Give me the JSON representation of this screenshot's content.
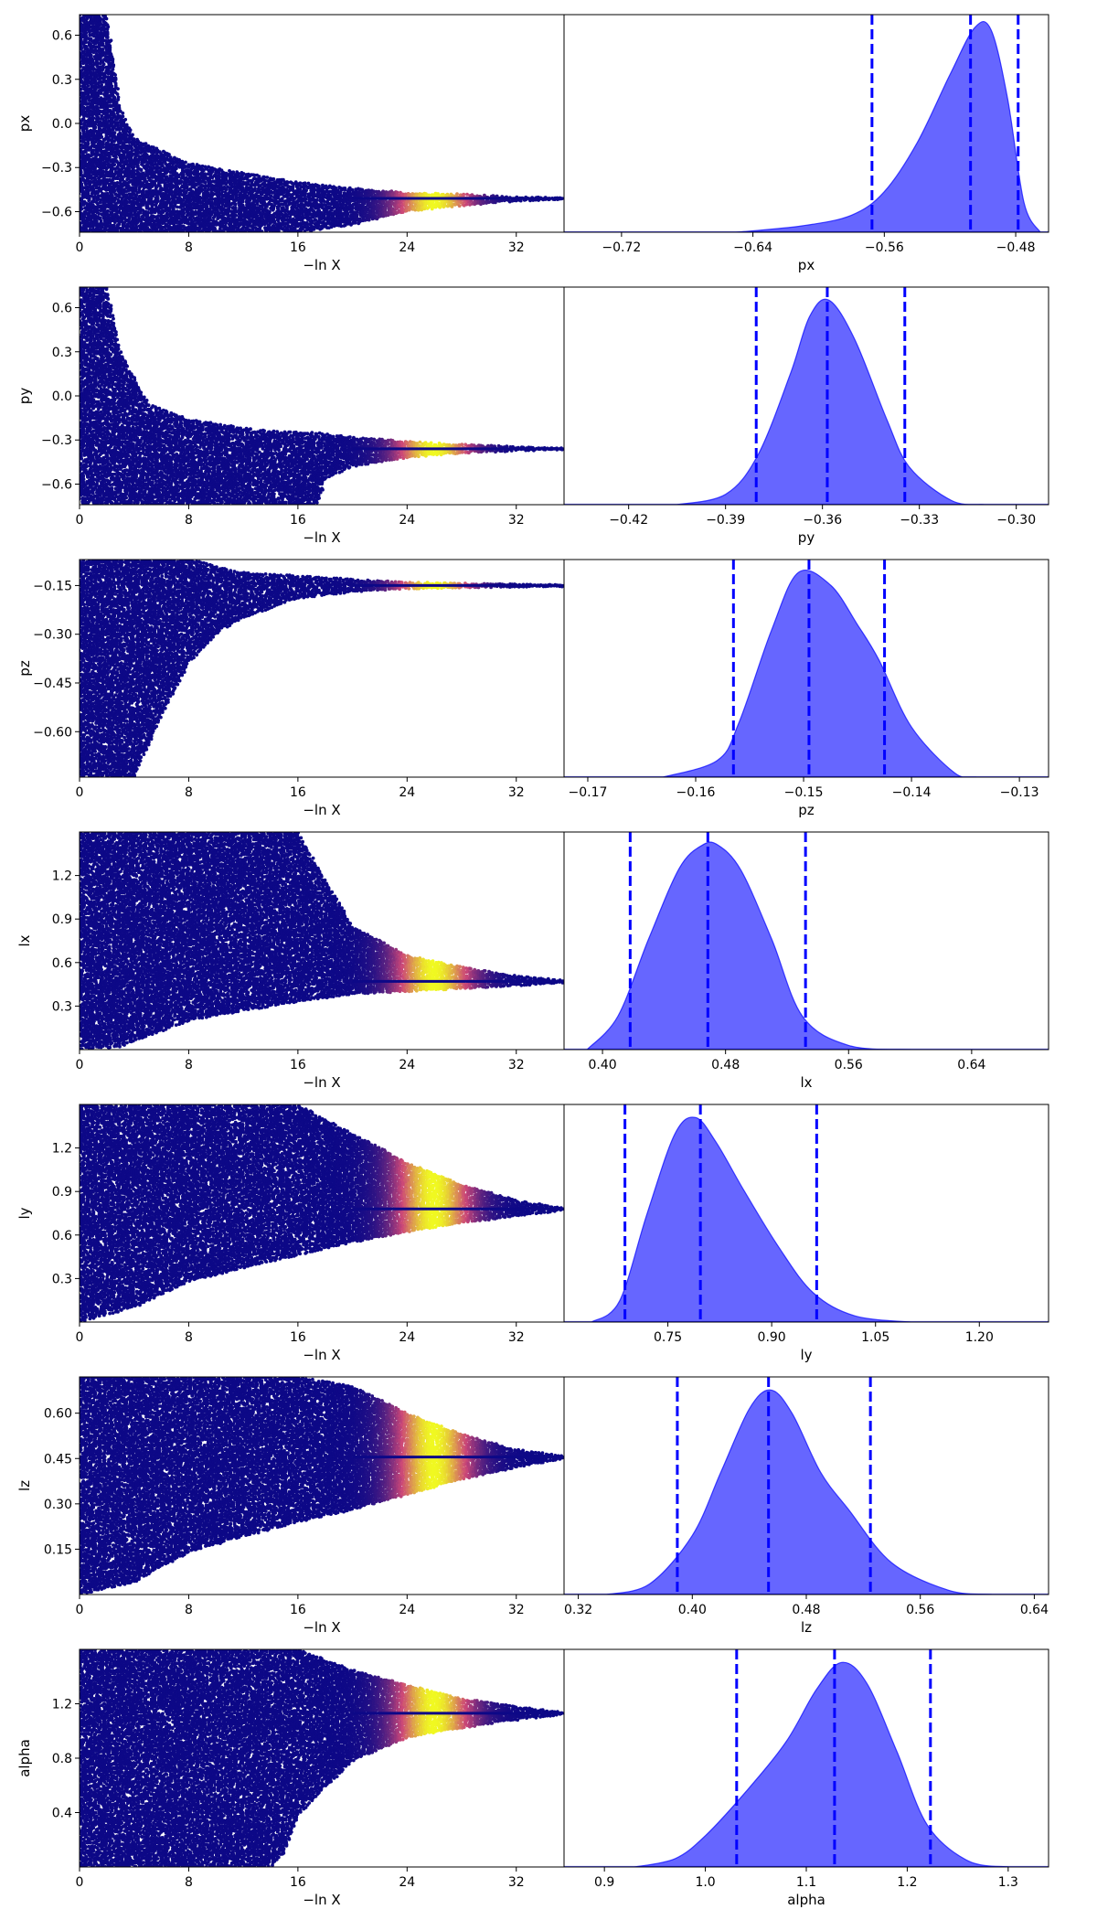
{
  "figure": {
    "colors": {
      "density_fill": "#0000ff",
      "density_fill_opacity": 0.6,
      "quantile_line": "#0000ff",
      "scatter_low": "#0d0887",
      "scatter_mid": "#cc4778",
      "scatter_high": "#f0f921"
    }
  },
  "chart_data": [
    {
      "type": "scatter",
      "param": "px",
      "xlabel": "−ln X",
      "ylabel": "px",
      "xlim": [
        0,
        35.5
      ],
      "ylim": [
        -0.74,
        0.74
      ],
      "x_ticks": [
        0,
        8,
        16,
        24,
        32
      ],
      "y_ticks": [
        -0.6,
        -0.3,
        0.0,
        0.3,
        0.6
      ],
      "y_tick_labels": [
        "−0.6",
        "−0.3",
        "0.0",
        "0.3",
        "0.6"
      ],
      "converged_value": -0.51,
      "envelope": [
        {
          "x": 0,
          "lo": -0.74,
          "hi": 0.74
        },
        {
          "x": 2,
          "lo": -0.74,
          "hi": 0.74
        },
        {
          "x": 3,
          "lo": -0.74,
          "hi": 0.1
        },
        {
          "x": 4,
          "lo": -0.74,
          "hi": -0.1
        },
        {
          "x": 8,
          "lo": -0.74,
          "hi": -0.27
        },
        {
          "x": 16,
          "lo": -0.74,
          "hi": -0.4
        },
        {
          "x": 20,
          "lo": -0.69,
          "hi": -0.44
        },
        {
          "x": 24,
          "lo": -0.6,
          "hi": -0.47
        },
        {
          "x": 28,
          "lo": -0.56,
          "hi": -0.48
        },
        {
          "x": 32,
          "lo": -0.53,
          "hi": -0.5
        },
        {
          "x": 35.5,
          "lo": -0.515,
          "hi": -0.505
        }
      ]
    },
    {
      "type": "area",
      "param": "px",
      "xlabel": "px",
      "xlim": [
        -0.755,
        -0.46
      ],
      "x_ticks": [
        -0.72,
        -0.64,
        -0.56,
        -0.48
      ],
      "x_tick_labels": [
        "−0.72",
        "−0.64",
        "−0.56",
        "−0.48"
      ],
      "density": {
        "x": [
          -0.65,
          -0.61,
          -0.58,
          -0.56,
          -0.54,
          -0.52,
          -0.505,
          -0.495,
          -0.485,
          -0.475,
          -0.465
        ],
        "y": [
          0.0,
          0.03,
          0.08,
          0.19,
          0.42,
          0.74,
          0.96,
          0.95,
          0.63,
          0.14,
          0.0
        ]
      },
      "quantiles": [
        -0.5675,
        -0.5075,
        -0.4785
      ]
    },
    {
      "type": "scatter",
      "param": "py",
      "xlabel": "−ln X",
      "ylabel": "py",
      "xlim": [
        0,
        35.5
      ],
      "ylim": [
        -0.74,
        0.74
      ],
      "x_ticks": [
        0,
        8,
        16,
        24,
        32
      ],
      "y_ticks": [
        -0.6,
        -0.3,
        0.0,
        0.3,
        0.6
      ],
      "y_tick_labels": [
        "−0.6",
        "−0.3",
        "0.0",
        "0.3",
        "0.6"
      ],
      "converged_value": -0.36,
      "envelope": [
        {
          "x": 0,
          "lo": -0.74,
          "hi": 0.74
        },
        {
          "x": 2,
          "lo": -0.74,
          "hi": 0.74
        },
        {
          "x": 3,
          "lo": -0.74,
          "hi": 0.3
        },
        {
          "x": 5,
          "lo": -0.74,
          "hi": -0.05
        },
        {
          "x": 8,
          "lo": -0.74,
          "hi": -0.16
        },
        {
          "x": 14,
          "lo": -0.74,
          "hi": -0.24
        },
        {
          "x": 17.5,
          "lo": -0.74,
          "hi": -0.25
        },
        {
          "x": 18,
          "lo": -0.56,
          "hi": -0.26
        },
        {
          "x": 20,
          "lo": -0.48,
          "hi": -0.28
        },
        {
          "x": 24,
          "lo": -0.42,
          "hi": -0.31
        },
        {
          "x": 28,
          "lo": -0.39,
          "hi": -0.33
        },
        {
          "x": 32,
          "lo": -0.375,
          "hi": -0.345
        },
        {
          "x": 35.5,
          "lo": -0.365,
          "hi": -0.355
        }
      ]
    },
    {
      "type": "area",
      "param": "py",
      "xlabel": "py",
      "xlim": [
        -0.44,
        -0.29
      ],
      "x_ticks": [
        -0.42,
        -0.39,
        -0.36,
        -0.33,
        -0.3
      ],
      "x_tick_labels": [
        "−0.42",
        "−0.39",
        "−0.36",
        "−0.33",
        "−0.30"
      ],
      "density": {
        "x": [
          -0.405,
          -0.39,
          -0.38,
          -0.37,
          -0.364,
          -0.358,
          -0.35,
          -0.34,
          -0.333,
          -0.32,
          -0.31
        ],
        "y": [
          0.0,
          0.05,
          0.24,
          0.63,
          0.91,
          0.99,
          0.8,
          0.41,
          0.18,
          0.02,
          0.0
        ]
      },
      "quantiles": [
        -0.3805,
        -0.3585,
        -0.3345
      ]
    },
    {
      "type": "scatter",
      "param": "pz",
      "xlabel": "−ln X",
      "ylabel": "pz",
      "xlim": [
        0,
        35.5
      ],
      "ylim": [
        -0.74,
        -0.07
      ],
      "x_ticks": [
        0,
        8,
        16,
        24,
        32
      ],
      "y_ticks": [
        -0.6,
        -0.45,
        -0.3,
        -0.15
      ],
      "y_tick_labels": [
        "−0.60",
        "−0.45",
        "−0.30",
        "−0.15"
      ],
      "converged_value": -0.15,
      "envelope": [
        {
          "x": 0,
          "lo": -0.74,
          "hi": -0.07
        },
        {
          "x": 4,
          "lo": -0.74,
          "hi": -0.07
        },
        {
          "x": 6,
          "lo": -0.55,
          "hi": -0.07
        },
        {
          "x": 8,
          "lo": -0.39,
          "hi": -0.07
        },
        {
          "x": 10,
          "lo": -0.3,
          "hi": -0.09
        },
        {
          "x": 12,
          "lo": -0.25,
          "hi": -0.11
        },
        {
          "x": 16,
          "lo": -0.19,
          "hi": -0.12
        },
        {
          "x": 20,
          "lo": -0.17,
          "hi": -0.13
        },
        {
          "x": 24,
          "lo": -0.16,
          "hi": -0.14
        },
        {
          "x": 35.5,
          "lo": -0.152,
          "hi": -0.148
        }
      ]
    },
    {
      "type": "area",
      "param": "pz",
      "xlabel": "pz",
      "xlim": [
        -0.1722,
        -0.1273
      ],
      "x_ticks": [
        -0.17,
        -0.16,
        -0.15,
        -0.14,
        -0.13
      ],
      "x_tick_labels": [
        "−0.17",
        "−0.16",
        "−0.15",
        "−0.14",
        "−0.13"
      ],
      "density": {
        "x": [
          -0.163,
          -0.158,
          -0.156,
          -0.153,
          -0.1505,
          -0.1475,
          -0.145,
          -0.143,
          -0.14,
          -0.136,
          -0.134
        ],
        "y": [
          0.0,
          0.08,
          0.26,
          0.7,
          0.98,
          0.92,
          0.73,
          0.56,
          0.24,
          0.02,
          0.0
        ]
      },
      "quantiles": [
        -0.1565,
        -0.1495,
        -0.1425
      ]
    },
    {
      "type": "scatter",
      "param": "lx",
      "xlabel": "−ln X",
      "ylabel": "lx",
      "xlim": [
        0,
        35.5
      ],
      "ylim": [
        0.0,
        1.5
      ],
      "x_ticks": [
        0,
        8,
        16,
        24,
        32
      ],
      "y_ticks": [
        0.3,
        0.6,
        0.9,
        1.2
      ],
      "y_tick_labels": [
        "0.3",
        "0.6",
        "0.9",
        "1.2"
      ],
      "converged_value": 0.47,
      "envelope": [
        {
          "x": 0,
          "lo": 0.0,
          "hi": 1.5
        },
        {
          "x": 3,
          "lo": 0.02,
          "hi": 1.5
        },
        {
          "x": 8,
          "lo": 0.2,
          "hi": 1.5
        },
        {
          "x": 16,
          "lo": 0.33,
          "hi": 1.5
        },
        {
          "x": 17.5,
          "lo": 0.35,
          "hi": 1.25
        },
        {
          "x": 20,
          "lo": 0.38,
          "hi": 0.85
        },
        {
          "x": 24,
          "lo": 0.4,
          "hi": 0.65
        },
        {
          "x": 28,
          "lo": 0.42,
          "hi": 0.57
        },
        {
          "x": 32,
          "lo": 0.44,
          "hi": 0.51
        },
        {
          "x": 35.5,
          "lo": 0.46,
          "hi": 0.48
        }
      ]
    },
    {
      "type": "area",
      "param": "lx",
      "xlabel": "lx",
      "xlim": [
        0.375,
        0.69
      ],
      "x_ticks": [
        0.4,
        0.48,
        0.56,
        0.64
      ],
      "x_tick_labels": [
        "0.40",
        "0.48",
        "0.56",
        "0.64"
      ],
      "density": {
        "x": [
          0.39,
          0.41,
          0.43,
          0.45,
          0.465,
          0.475,
          0.49,
          0.51,
          0.53,
          0.56,
          0.6
        ],
        "y": [
          0.0,
          0.16,
          0.53,
          0.87,
          0.98,
          0.98,
          0.86,
          0.53,
          0.16,
          0.02,
          0.0
        ]
      },
      "quantiles": [
        0.418,
        0.4685,
        0.532
      ]
    },
    {
      "type": "scatter",
      "param": "ly",
      "xlabel": "−ln X",
      "ylabel": "ly",
      "xlim": [
        0,
        35.5
      ],
      "ylim": [
        0.0,
        1.5
      ],
      "x_ticks": [
        0,
        8,
        16,
        24,
        32
      ],
      "y_ticks": [
        0.3,
        0.6,
        0.9,
        1.2
      ],
      "y_tick_labels": [
        "0.3",
        "0.6",
        "0.9",
        "1.2"
      ],
      "converged_value": 0.78,
      "envelope": [
        {
          "x": 0,
          "lo": 0.0,
          "hi": 1.5
        },
        {
          "x": 4,
          "lo": 0.1,
          "hi": 1.5
        },
        {
          "x": 8,
          "lo": 0.28,
          "hi": 1.5
        },
        {
          "x": 16,
          "lo": 0.46,
          "hi": 1.5
        },
        {
          "x": 20,
          "lo": 0.55,
          "hi": 1.3
        },
        {
          "x": 24,
          "lo": 0.62,
          "hi": 1.1
        },
        {
          "x": 28,
          "lo": 0.68,
          "hi": 0.95
        },
        {
          "x": 32,
          "lo": 0.73,
          "hi": 0.84
        },
        {
          "x": 35.5,
          "lo": 0.77,
          "hi": 0.79
        }
      ]
    },
    {
      "type": "area",
      "param": "ly",
      "xlabel": "ly",
      "xlim": [
        0.6,
        1.3
      ],
      "x_ticks": [
        0.75,
        0.9,
        1.05,
        1.2
      ],
      "x_tick_labels": [
        "0.75",
        "0.90",
        "1.05",
        "1.20"
      ],
      "density": {
        "x": [
          0.64,
          0.68,
          0.72,
          0.76,
          0.79,
          0.82,
          0.86,
          0.91,
          0.96,
          1.02,
          1.1
        ],
        "y": [
          0.0,
          0.1,
          0.52,
          0.9,
          0.98,
          0.86,
          0.63,
          0.36,
          0.14,
          0.03,
          0.0
        ]
      },
      "quantiles": [
        0.688,
        0.797,
        0.965
      ]
    },
    {
      "type": "scatter",
      "param": "lz",
      "xlabel": "−ln X",
      "ylabel": "lz",
      "xlim": [
        0,
        35.5
      ],
      "ylim": [
        0.0,
        0.72
      ],
      "x_ticks": [
        0,
        8,
        16,
        24,
        32
      ],
      "y_ticks": [
        0.15,
        0.3,
        0.45,
        0.6
      ],
      "y_tick_labels": [
        "0.15",
        "0.30",
        "0.45",
        "0.60"
      ],
      "converged_value": 0.455,
      "envelope": [
        {
          "x": 0,
          "lo": 0.0,
          "hi": 0.72
        },
        {
          "x": 4,
          "lo": 0.04,
          "hi": 0.72
        },
        {
          "x": 8,
          "lo": 0.14,
          "hi": 0.72
        },
        {
          "x": 16,
          "lo": 0.24,
          "hi": 0.72
        },
        {
          "x": 20,
          "lo": 0.28,
          "hi": 0.69
        },
        {
          "x": 24,
          "lo": 0.33,
          "hi": 0.6
        },
        {
          "x": 28,
          "lo": 0.38,
          "hi": 0.53
        },
        {
          "x": 32,
          "lo": 0.42,
          "hi": 0.48
        },
        {
          "x": 35.5,
          "lo": 0.45,
          "hi": 0.46
        }
      ]
    },
    {
      "type": "area",
      "param": "lz",
      "xlabel": "lz",
      "xlim": [
        0.31,
        0.65
      ],
      "x_ticks": [
        0.32,
        0.4,
        0.48,
        0.56,
        0.64
      ],
      "x_tick_labels": [
        "0.32",
        "0.40",
        "0.48",
        "0.56",
        "0.64"
      ],
      "density": {
        "x": [
          0.34,
          0.37,
          0.4,
          0.42,
          0.44,
          0.455,
          0.47,
          0.49,
          0.51,
          0.54,
          0.58,
          0.61
        ],
        "y": [
          0.0,
          0.05,
          0.28,
          0.58,
          0.88,
          0.97,
          0.86,
          0.58,
          0.4,
          0.15,
          0.02,
          0.0
        ]
      },
      "quantiles": [
        0.3895,
        0.4535,
        0.525
      ]
    },
    {
      "type": "scatter",
      "param": "alpha",
      "xlabel": "−ln X",
      "ylabel": "alpha",
      "xlim": [
        0,
        35.5
      ],
      "ylim": [
        0.0,
        1.6
      ],
      "x_ticks": [
        0,
        8,
        16,
        24,
        32
      ],
      "y_ticks": [
        0.4,
        0.8,
        1.2
      ],
      "y_tick_labels": [
        "0.4",
        "0.8",
        "1.2"
      ],
      "converged_value": 1.13,
      "envelope": [
        {
          "x": 0,
          "lo": 0.0,
          "hi": 1.6
        },
        {
          "x": 14,
          "lo": 0.0,
          "hi": 1.6
        },
        {
          "x": 15,
          "lo": 0.1,
          "hi": 1.6
        },
        {
          "x": 16,
          "lo": 0.38,
          "hi": 1.6
        },
        {
          "x": 20,
          "lo": 0.78,
          "hi": 1.45
        },
        {
          "x": 24,
          "lo": 0.95,
          "hi": 1.34
        },
        {
          "x": 28,
          "lo": 1.02,
          "hi": 1.24
        },
        {
          "x": 32,
          "lo": 1.08,
          "hi": 1.18
        },
        {
          "x": 35.5,
          "lo": 1.12,
          "hi": 1.14
        }
      ]
    },
    {
      "type": "area",
      "param": "alpha",
      "xlabel": "alpha",
      "xlim": [
        0.86,
        1.34
      ],
      "x_ticks": [
        0.9,
        1.0,
        1.1,
        1.2,
        1.3
      ],
      "x_tick_labels": [
        "0.9",
        "1.0",
        "1.1",
        "1.2",
        "1.3"
      ],
      "density": {
        "x": [
          0.93,
          0.97,
          1.0,
          1.04,
          1.08,
          1.11,
          1.135,
          1.16,
          1.19,
          1.22,
          1.26,
          1.3
        ],
        "y": [
          0.0,
          0.04,
          0.15,
          0.36,
          0.6,
          0.85,
          0.98,
          0.88,
          0.55,
          0.2,
          0.03,
          0.0
        ]
      },
      "quantiles": [
        1.031,
        1.128,
        1.223
      ]
    }
  ]
}
